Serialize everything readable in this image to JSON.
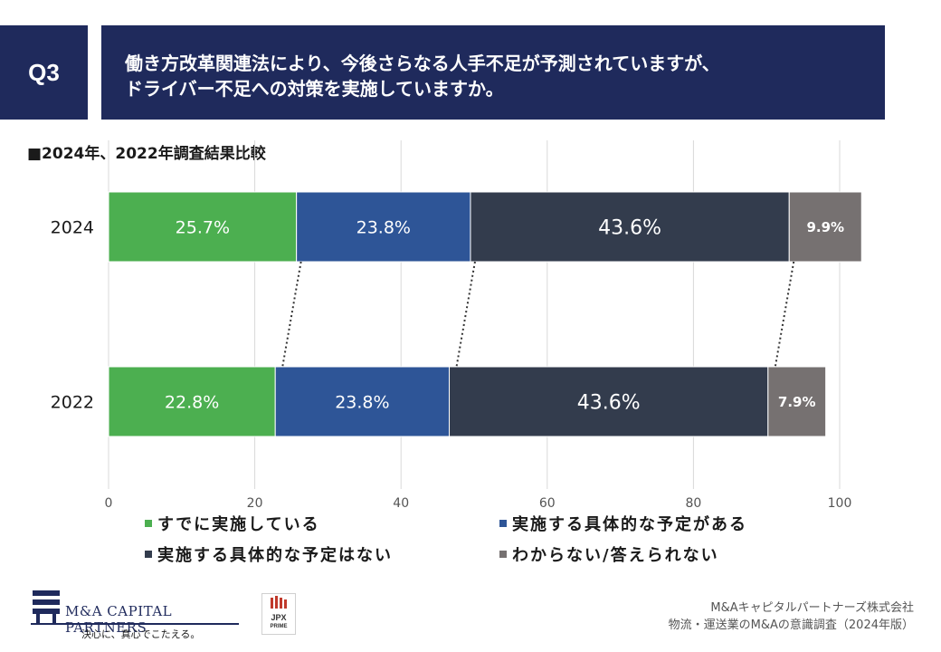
{
  "header": {
    "question_label": "Q3",
    "question_line1": "働き方改革関連法により、今後さらなる人手不足が予測されていますが、",
    "question_line2": "ドライバー不足への対策を実施していますか。"
  },
  "subtitle": "■2024年、2022年調査結果比較",
  "chart_data": {
    "type": "bar",
    "orientation": "horizontal",
    "stacked": true,
    "categories": [
      "2024",
      "2022"
    ],
    "series": [
      {
        "name": "すでに実施している",
        "values": [
          25.7,
          22.8
        ],
        "labels": [
          "25.7%",
          "22.8%"
        ],
        "color": "#4caf50"
      },
      {
        "name": "実施する具体的な予定がある",
        "values": [
          23.8,
          23.8
        ],
        "labels": [
          "23.8%",
          "23.8%"
        ],
        "color": "#2e5597"
      },
      {
        "name": "実施する具体的な予定はない",
        "values": [
          43.6,
          43.6
        ],
        "labels": [
          "43.6%",
          "43.6%"
        ],
        "color": "#333c4d"
      },
      {
        "name": "わからない/答えられない",
        "values": [
          9.9,
          7.9
        ],
        "labels": [
          "9.9%",
          "7.9%"
        ],
        "color": "#767171"
      }
    ],
    "x_ticks": [
      "0",
      "20",
      "40",
      "60",
      "80",
      "100"
    ],
    "xlim": [
      0,
      100
    ],
    "grid": true,
    "connector_lines": "dotted lines linking segment boundaries between 2024 and 2022",
    "legend_position": "bottom"
  },
  "legend": [
    {
      "label": "すでに実施している",
      "color": "#4caf50"
    },
    {
      "label": "実施する具体的な予定がある",
      "color": "#2e5597"
    },
    {
      "label": "実施する具体的な予定はない",
      "color": "#333c4d"
    },
    {
      "label": "わからない/答えられない",
      "color": "#767171"
    }
  ],
  "footer": {
    "company_logo_name": "M&A CAPITAL PARTNERS",
    "company_tagline": "決心に、真心でこたえる。",
    "jpx_line1": "JPX",
    "jpx_line2": "PRIME",
    "source_line1": "M&Aキャピタルパートナーズ株式会社",
    "source_line2": "物流・運送業のM&Aの意識調査（2024年版）"
  }
}
